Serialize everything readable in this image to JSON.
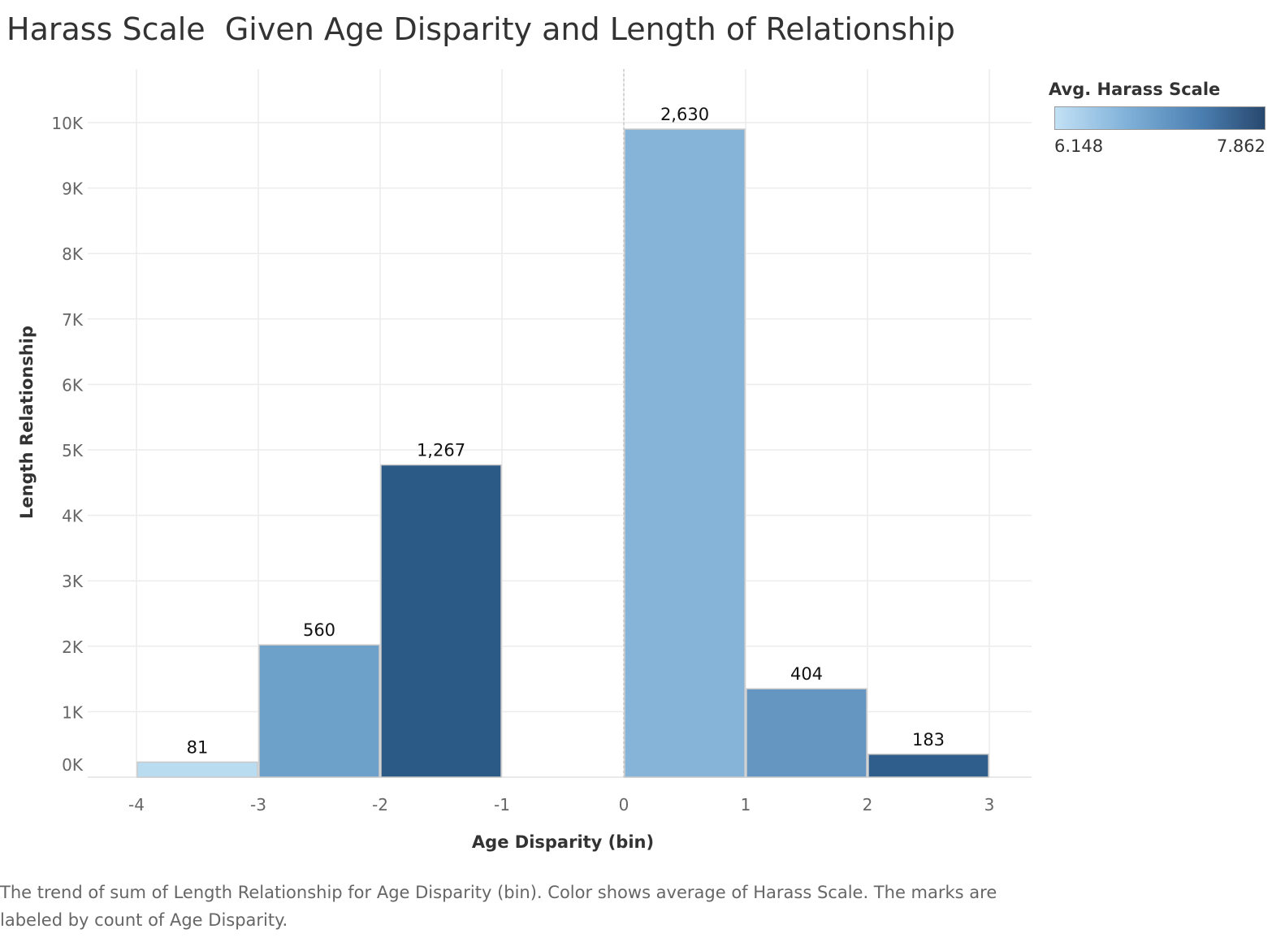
{
  "chart_data": {
    "type": "bar",
    "title": "Harass Scale  Given Age Disparity and Length of Relationship",
    "xlabel": "Age Disparity (bin)",
    "ylabel": "Length Relationship",
    "xlim": [
      -4,
      3
    ],
    "ylim": [
      0,
      10000
    ],
    "x_ticks": [
      "-4",
      "-3",
      "-2",
      "-1",
      "0",
      "1",
      "2",
      "3"
    ],
    "y_ticks": [
      "0K",
      "1K",
      "2K",
      "3K",
      "4K",
      "5K",
      "6K",
      "7K",
      "8K",
      "9K",
      "10K"
    ],
    "grid": true,
    "bins": [
      {
        "start": -4,
        "end": -3,
        "value": 230,
        "label": "81",
        "color": "#b9dcf0"
      },
      {
        "start": -3,
        "end": -2,
        "value": 2020,
        "label": "560",
        "color": "#6ea1c9"
      },
      {
        "start": -2,
        "end": -1,
        "value": 4770,
        "label": "1,267",
        "color": "#2c5a86"
      },
      {
        "start": 0,
        "end": 1,
        "value": 9900,
        "label": "2,630",
        "color": "#86b4d9"
      },
      {
        "start": 1,
        "end": 2,
        "value": 1350,
        "label": "404",
        "color": "#6596c1"
      },
      {
        "start": 2,
        "end": 3,
        "value": 350,
        "label": "183",
        "color": "#2f5e8c"
      }
    ],
    "legend": {
      "title": "Avg. Harass Scale",
      "min": "6.148",
      "max": "7.862",
      "color_min": "#c2e1f5",
      "color_max": "#28486e",
      "placement": "top-right"
    },
    "caption": "The trend of sum of Length Relationship for Age Disparity (bin).  Color shows average of Harass Scale.  The marks are labeled by count of Age Disparity."
  }
}
